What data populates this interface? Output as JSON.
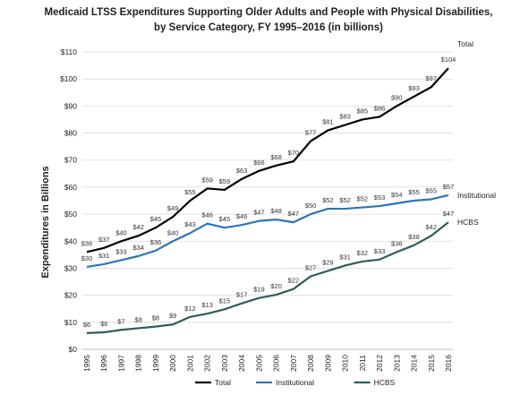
{
  "chart_data": {
    "type": "line",
    "title_line1": "Medicaid LTSS Expenditures Supporting Older Adults and People with Physical Disabilities,",
    "title_line2": "by Service Category, FY 1995–2016 (in billions)",
    "ylabel": "Expenditures in Billions",
    "xlabel": "",
    "ylim": [
      0,
      110
    ],
    "y_ticks": [
      "$0",
      "$10",
      "$20",
      "$30",
      "$40",
      "$50",
      "$60",
      "$70",
      "$80",
      "$90",
      "$100",
      "$110"
    ],
    "categories": [
      "1995",
      "1996",
      "1997",
      "1998",
      "1999",
      "2000",
      "2001",
      "2002",
      "2003",
      "2004",
      "2005",
      "2006",
      "2007",
      "2008",
      "2009",
      "2010",
      "2011",
      "2012",
      "2013",
      "2014",
      "2015",
      "2016"
    ],
    "grid": "horizontal",
    "legend_position": "bottom",
    "series": [
      {
        "name": "Total",
        "color": "#000000",
        "values": [
          36,
          37.5,
          40,
          42,
          45,
          49,
          55,
          59.5,
          59,
          63,
          66,
          68,
          69.5,
          77,
          81,
          83,
          85,
          86,
          90,
          93.5,
          97,
          104
        ],
        "labels": [
          "$36",
          "$37",
          "$40",
          "$42",
          "$45",
          "$49",
          "$55",
          "$59",
          "$59",
          "$63",
          "$66",
          "$68",
          "$70",
          "$77",
          "$81",
          "$83",
          "$85",
          "$86",
          "$90",
          "$93",
          "$97",
          "$104"
        ]
      },
      {
        "name": "Institutional",
        "color": "#2e75b6",
        "values": [
          30.5,
          31.5,
          33,
          34.5,
          36.5,
          40,
          43,
          46.5,
          45,
          46,
          47.5,
          48,
          47,
          50,
          52,
          52,
          52.5,
          53,
          54,
          55,
          55.5,
          57
        ],
        "labels": [
          "$30",
          "$31",
          "$33",
          "$34",
          "$36",
          "$40",
          "$43",
          "$46",
          "$45",
          "$46",
          "$47",
          "$48",
          "$47",
          "$50",
          "$52",
          "$52",
          "$52",
          "$53",
          "$54",
          "$55",
          "$55",
          "$57"
        ]
      },
      {
        "name": "HCBS",
        "color": "#2f5d58",
        "values": [
          6,
          6.3,
          7.2,
          7.8,
          8.4,
          9.2,
          12,
          13.2,
          14.8,
          17,
          19,
          20.2,
          22.3,
          27,
          29,
          31,
          32.5,
          33.2,
          36,
          38.5,
          42,
          47
        ],
        "labels": [
          "$6",
          "$6",
          "$7",
          "$8",
          "$8",
          "$9",
          "$12",
          "$13",
          "$15",
          "$17",
          "$19",
          "$20",
          "$22",
          "$27",
          "$29",
          "$31",
          "$32",
          "$33",
          "$36",
          "$38",
          "$42",
          "$47"
        ]
      }
    ]
  }
}
